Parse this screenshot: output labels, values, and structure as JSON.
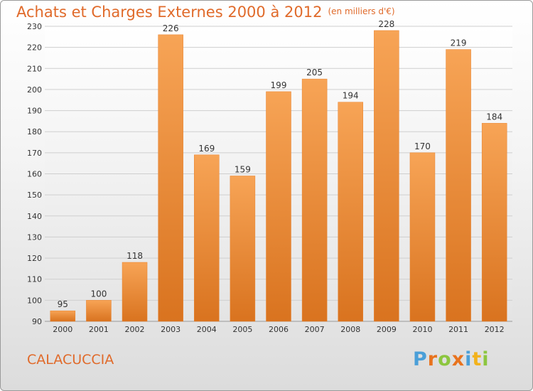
{
  "header": {
    "title": "Achats et Charges Externes 2000 à 2012",
    "unit": "(en milliers d'€)"
  },
  "footer": {
    "place": "CALACUCCIA",
    "logo_letters": [
      "P",
      "r",
      "o",
      "x",
      "i",
      "t",
      "i"
    ],
    "logo_colors": [
      "#4a9fd8",
      "#e8731e",
      "#8cc63f",
      "#e8731e",
      "#4a9fd8",
      "#f2b21b",
      "#8cc63f"
    ]
  },
  "chart_data": {
    "type": "bar",
    "title": "Achats et Charges Externes 2000 à 2012",
    "subtitle": "(en milliers d'€)",
    "categories": [
      "2000",
      "2001",
      "2002",
      "2003",
      "2004",
      "2005",
      "2006",
      "2007",
      "2008",
      "2009",
      "2010",
      "2011",
      "2012"
    ],
    "values": [
      95,
      100,
      118,
      226,
      169,
      159,
      199,
      205,
      194,
      228,
      170,
      219,
      184
    ],
    "ylim": [
      90,
      230
    ],
    "yticks": [
      90,
      100,
      110,
      120,
      130,
      140,
      150,
      160,
      170,
      180,
      190,
      200,
      210,
      220,
      230
    ],
    "grid": true,
    "bar_color": "#f0923c",
    "legend": "none"
  }
}
